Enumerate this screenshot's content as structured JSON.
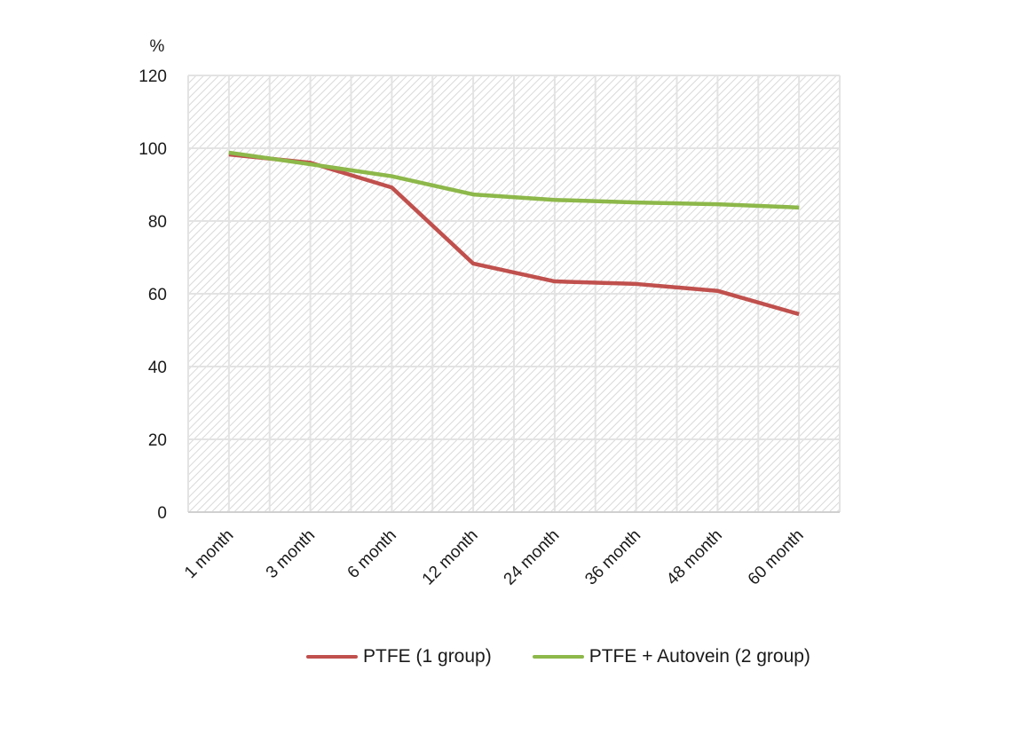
{
  "chart_data": {
    "type": "line",
    "title": "",
    "xlabel": "",
    "ylabel": "%",
    "ylim": [
      0,
      120
    ],
    "yticks": [
      0,
      20,
      40,
      60,
      80,
      100,
      120
    ],
    "grid": true,
    "background_pattern": "diagonal-hatch",
    "legend_position": "bottom",
    "categories": [
      "1 month",
      "3 month",
      "6 month",
      "12 month",
      "24 month",
      "36 month",
      "48 month",
      "60 month"
    ],
    "series": [
      {
        "name": "PTFE (1 group)",
        "color": "#c0504d",
        "values": [
          98.3,
          96.0,
          89.2,
          68.3,
          63.4,
          62.7,
          60.8,
          54.4
        ]
      },
      {
        "name": "PTFE + Autovein (2 group)",
        "color": "#8db84a",
        "values": [
          98.8,
          95.6,
          92.3,
          87.3,
          85.8,
          85.1,
          84.6,
          83.7
        ]
      }
    ]
  }
}
